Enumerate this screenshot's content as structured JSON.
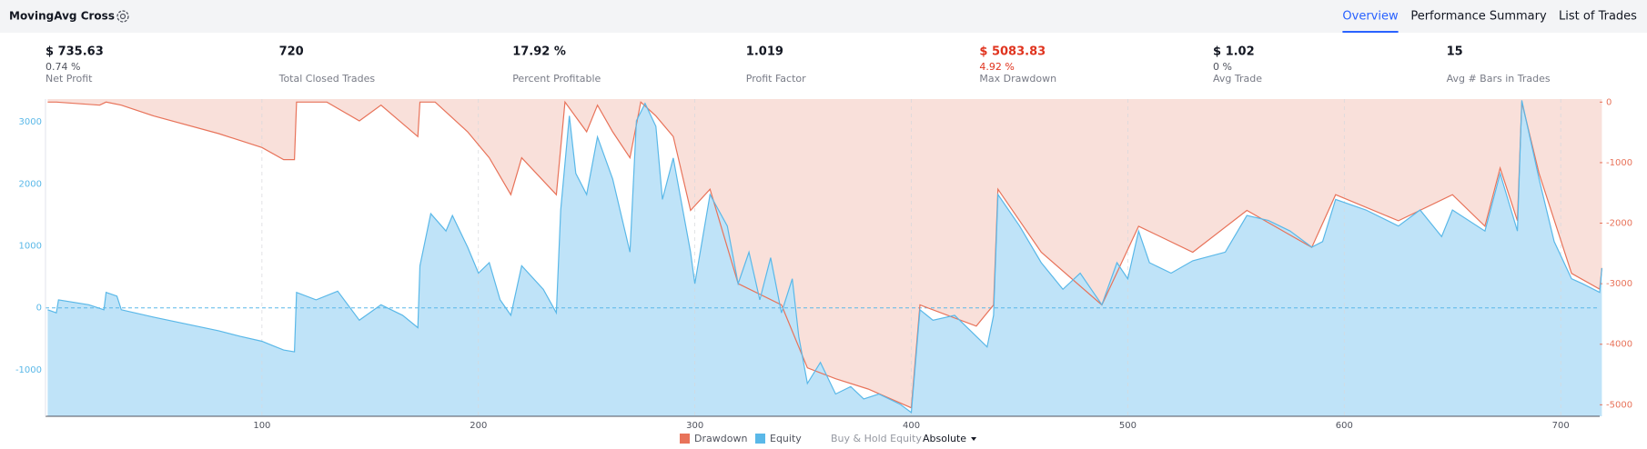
{
  "header": {
    "title": "MovingAvg Cross",
    "tabs": [
      "Overview",
      "Performance Summary",
      "List of Trades"
    ],
    "active_tab": 0
  },
  "stats": [
    {
      "value": "$ 735.63",
      "sub": "0.74 %",
      "label": "Net Profit"
    },
    {
      "value": "720",
      "label": "Total Closed Trades"
    },
    {
      "value": "17.92 %",
      "label": "Percent Profitable"
    },
    {
      "value": "1.019",
      "label": "Profit Factor"
    },
    {
      "value": "$ 5083.83",
      "sub": "4.92 %",
      "label": "Max Drawdown",
      "color": "#e0341f"
    },
    {
      "value": "$ 1.02",
      "sub": "0 %",
      "label": "Avg Trade"
    },
    {
      "value": "15",
      "label": "Avg # Bars in Trades"
    }
  ],
  "chart_data": {
    "type": "line",
    "xlim": [
      0,
      718
    ],
    "xticks": [
      100,
      200,
      300,
      400,
      500,
      600,
      700
    ],
    "ylim": [
      -1750,
      3370
    ],
    "yticks": [
      -1000,
      0,
      1000,
      2000,
      3000
    ],
    "y2lim": [
      -5190,
      50
    ],
    "y2ticks": [
      0,
      -1000,
      -2000,
      -3000,
      -4000,
      -5000
    ],
    "grid": true,
    "series": [
      {
        "name": "Drawdown",
        "color": "#e8735a",
        "fill": "#f9e0da",
        "axis": "y2",
        "x": [
          1,
          5,
          25,
          28,
          35,
          50,
          80,
          100,
          110,
          115,
          116,
          130,
          145,
          155,
          172,
          173,
          180,
          195,
          205,
          215,
          220,
          236,
          240,
          250,
          255,
          262,
          270,
          275,
          282,
          290,
          298,
          307,
          320,
          340,
          352,
          365,
          380,
          400,
          404,
          430,
          438,
          440,
          460,
          488,
          505,
          530,
          555,
          585,
          596,
          625,
          650,
          665,
          672,
          680,
          682,
          690,
          705,
          718,
          719
        ],
        "values": [
          0,
          0,
          -50,
          0,
          -50,
          -230,
          -520,
          -750,
          -950,
          -950,
          0,
          0,
          -310,
          -50,
          -570,
          0,
          0,
          -490,
          -920,
          -1530,
          -920,
          -1530,
          0,
          -490,
          -50,
          -490,
          -920,
          0,
          -230,
          -570,
          -1790,
          -1440,
          -3000,
          -3350,
          -4390,
          -4570,
          -4740,
          -5050,
          -3350,
          -3700,
          -3350,
          -1440,
          -2480,
          -3350,
          -2050,
          -2480,
          -1790,
          -2400,
          -1530,
          -1960,
          -1530,
          -2050,
          -1090,
          -1960,
          0,
          -1180,
          -2830,
          -3090,
          -2740
        ]
      },
      {
        "name": "Equity",
        "color": "#5ab8e8",
        "fill": "#bfe3f8",
        "x": [
          1,
          5,
          6,
          20,
          27,
          28,
          33,
          35,
          50,
          80,
          90,
          100,
          110,
          115,
          116,
          125,
          135,
          145,
          155,
          165,
          172,
          173,
          178,
          185,
          188,
          195,
          200,
          205,
          210,
          215,
          220,
          230,
          236,
          238,
          242,
          245,
          250,
          255,
          262,
          270,
          273,
          277,
          282,
          285,
          290,
          298,
          300,
          307,
          315,
          320,
          325,
          330,
          335,
          340,
          345,
          348,
          352,
          358,
          365,
          372,
          378,
          385,
          395,
          400,
          404,
          410,
          420,
          430,
          435,
          438,
          440,
          450,
          460,
          470,
          478,
          488,
          495,
          500,
          505,
          510,
          520,
          530,
          545,
          555,
          565,
          575,
          585,
          590,
          596,
          610,
          625,
          635,
          645,
          650,
          665,
          672,
          680,
          682,
          690,
          697,
          705,
          710,
          718,
          719
        ],
        "values": [
          -30,
          -80,
          130,
          50,
          -30,
          250,
          190,
          -30,
          -150,
          -370,
          -460,
          -540,
          -680,
          -710,
          250,
          130,
          270,
          -200,
          50,
          -120,
          -320,
          680,
          1520,
          1240,
          1490,
          980,
          560,
          730,
          130,
          -120,
          680,
          300,
          -80,
          1580,
          3100,
          2170,
          1830,
          2760,
          2080,
          900,
          3020,
          3300,
          2930,
          1750,
          2420,
          900,
          390,
          1830,
          1320,
          390,
          900,
          130,
          810,
          -80,
          470,
          -460,
          -1220,
          -880,
          -1390,
          -1270,
          -1470,
          -1390,
          -1560,
          -1690,
          -30,
          -200,
          -120,
          -460,
          -630,
          -120,
          1830,
          1320,
          730,
          300,
          560,
          50,
          730,
          470,
          1240,
          730,
          560,
          760,
          900,
          1490,
          1410,
          1240,
          980,
          1070,
          1750,
          1580,
          1320,
          1580,
          1150,
          1580,
          1240,
          2170,
          1240,
          3350,
          2080,
          1070,
          470,
          390,
          250,
          640
        ]
      }
    ],
    "legend_inactive": "Buy & Hold Equity",
    "scale_mode": "Absolute"
  }
}
